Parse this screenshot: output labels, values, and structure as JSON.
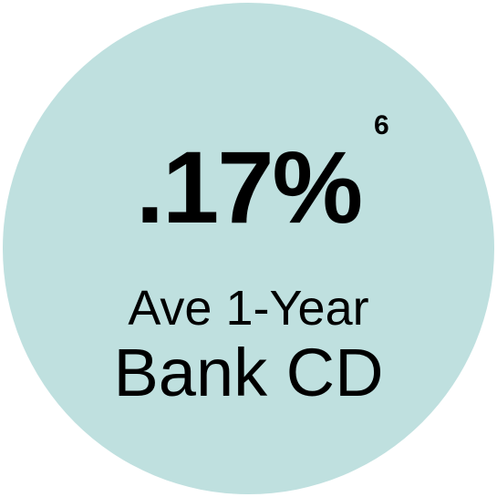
{
  "badge": {
    "stat_value": ".17%",
    "footnote_marker": "6",
    "label_line1": "Ave 1-Year",
    "label_line2": "Bank CD",
    "colors": {
      "circle_fill": "#bfe0df",
      "text": "#000000",
      "background": "#ffffff"
    }
  }
}
